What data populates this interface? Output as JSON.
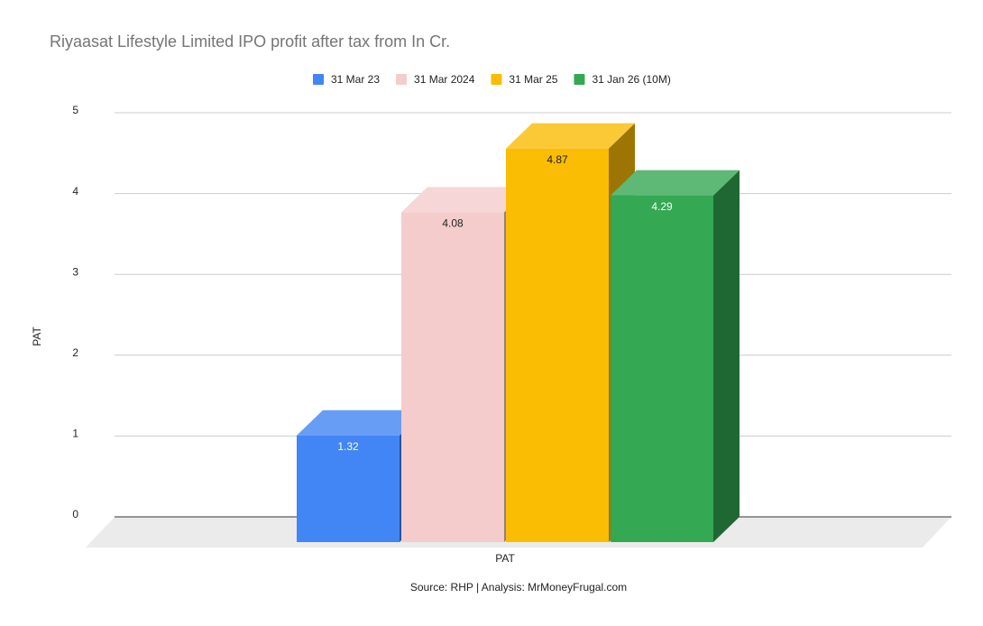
{
  "chart_data": {
    "type": "bar3d",
    "title": "Riyaasat Lifestyle Limited IPO profit after tax from In Cr.",
    "categories": [
      "PAT"
    ],
    "series": [
      {
        "name": "31 Mar 23",
        "color": "#4285f4",
        "values": [
          1.32
        ]
      },
      {
        "name": "31 Mar 2024",
        "color": "#f4cccc",
        "values": [
          4.08
        ]
      },
      {
        "name": "31 Mar 25",
        "color": "#fbbc04",
        "values": [
          4.87
        ]
      },
      {
        "name": "31 Jan 26 (10M)",
        "color": "#34a853",
        "values": [
          4.29
        ]
      }
    ],
    "ylabel": "PAT",
    "xlabel": "PAT",
    "ylim": [
      0,
      5
    ],
    "yticks": [
      0,
      1,
      2,
      3,
      4,
      5
    ],
    "grid": true,
    "legend": "top",
    "source": "Source: RHP | Analysis: MrMoneyFrugal.com"
  }
}
